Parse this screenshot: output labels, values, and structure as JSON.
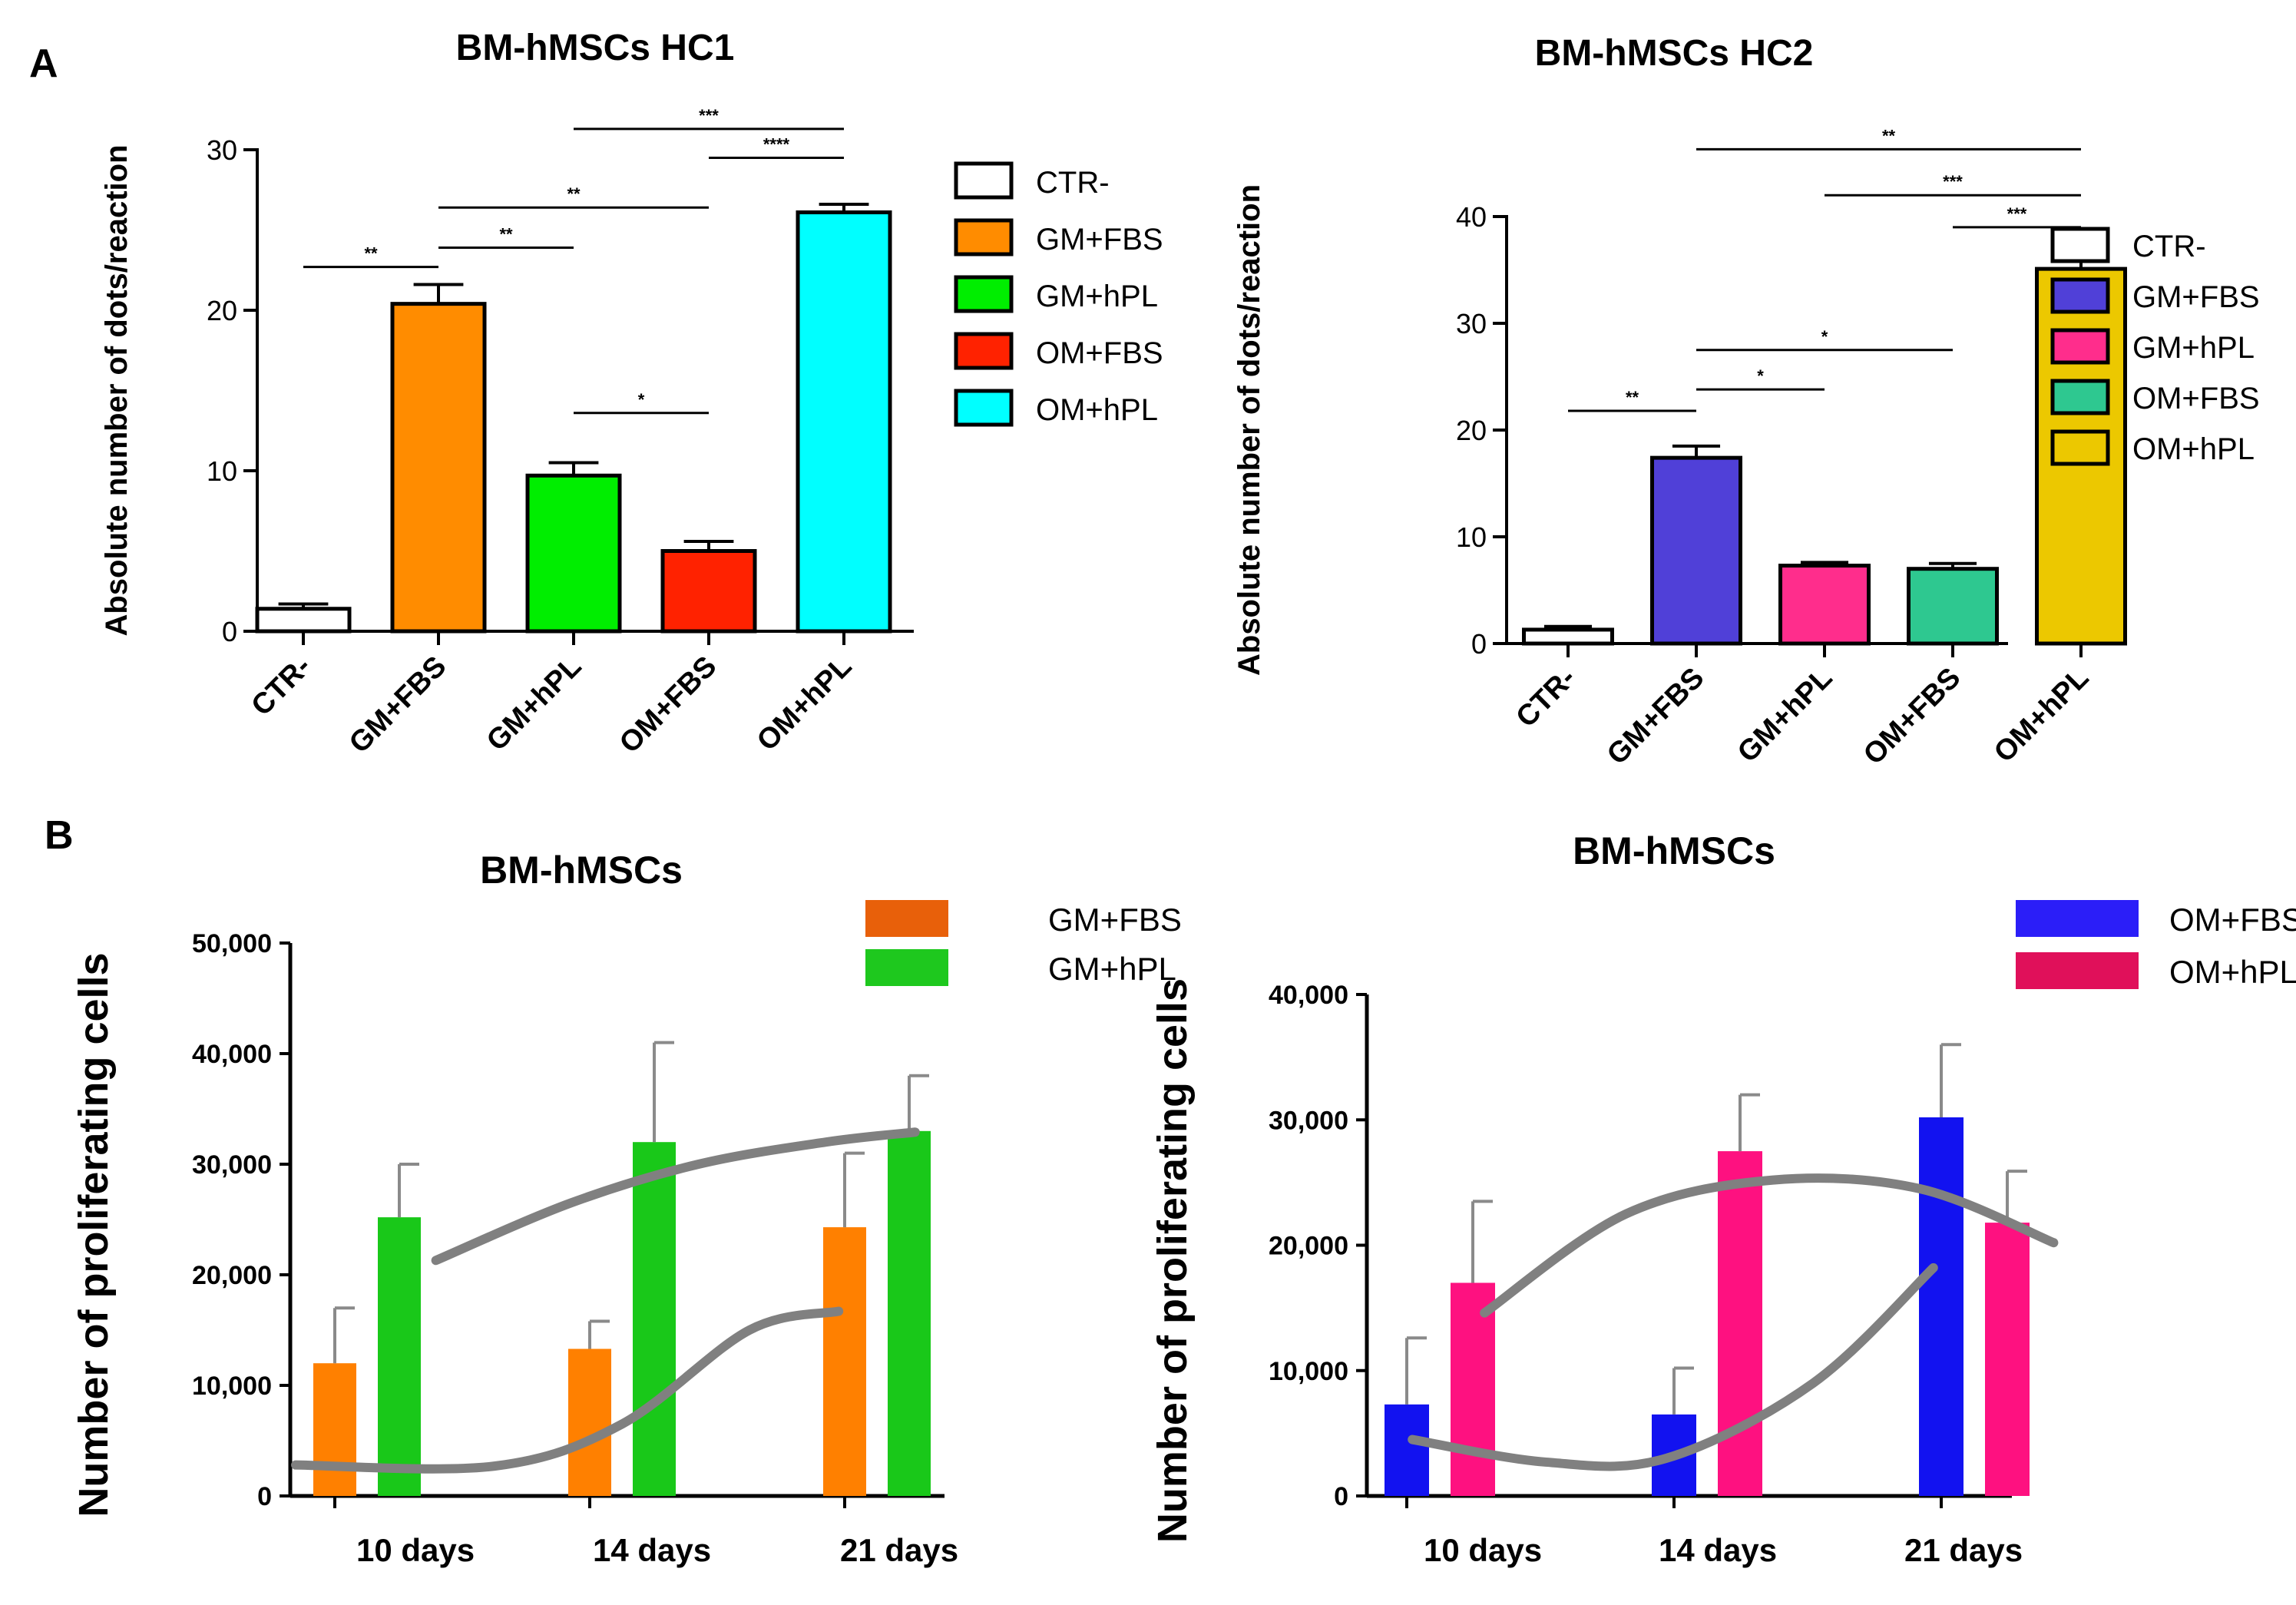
{
  "panel_labels": {
    "a": "A",
    "b": "B"
  },
  "chart_data": [
    {
      "id": "a1",
      "type": "bar",
      "title": "BM-hMSCs HC1",
      "ylabel": "Absolute number of dots/reaction",
      "xlabel": "",
      "ylim": [
        0,
        30
      ],
      "yticks": [
        "0",
        "10",
        "20",
        "30"
      ],
      "yticks_values": [
        0,
        10,
        20,
        30
      ],
      "categories": [
        "CTR-",
        "GM+FBS",
        "GM+hPL",
        "OM+FBS",
        "OM+hPL"
      ],
      "values": [
        1.4,
        20.4,
        9.7,
        5.0,
        26.1
      ],
      "errors": [
        0.3,
        1.2,
        0.8,
        0.6,
        0.5
      ],
      "colors": [
        "#ffffff",
        "#ff8c00",
        "#00ee00",
        "#ff2200",
        "#00ffff"
      ],
      "legend": [
        "CTR-",
        "GM+FBS",
        "GM+hPL",
        "OM+FBS",
        "OM+hPL"
      ],
      "significance": [
        {
          "from": 0,
          "to": 1,
          "y": 22.7,
          "label": "**"
        },
        {
          "from": 1,
          "to": 2,
          "y": 23.9,
          "label": "**"
        },
        {
          "from": 1,
          "to": 3,
          "y": 26.4,
          "label": "**"
        },
        {
          "from": 2,
          "to": 3,
          "y": 13.6,
          "label": "*"
        },
        {
          "from": 3,
          "to": 4,
          "y": 29.5,
          "label": "****"
        },
        {
          "from": 2,
          "to": 4,
          "y": 31.3,
          "label": "***"
        }
      ]
    },
    {
      "id": "a2",
      "type": "bar",
      "title": "BM-hMSCs HC2",
      "ylabel": "Absolute number of dots/reaction",
      "xlabel": "",
      "ylim": [
        0,
        40
      ],
      "yticks": [
        "0",
        "10",
        "20",
        "30",
        "40"
      ],
      "yticks_values": [
        0,
        10,
        20,
        30,
        40
      ],
      "categories": [
        "CTR-",
        "GM+FBS",
        "GM+hPL",
        "OM+FBS",
        "OM+hPL"
      ],
      "values": [
        1.3,
        17.4,
        7.3,
        7.0,
        35.1
      ],
      "errors": [
        0.3,
        1.1,
        0.3,
        0.5,
        2.7
      ],
      "colors": [
        "#ffffff",
        "#5040d8",
        "#ff2d8c",
        "#2ec890",
        "#ecc800"
      ],
      "legend": [
        "CTR-",
        "GM+FBS",
        "GM+hPL",
        "OM+FBS",
        "OM+hPL"
      ],
      "significance": [
        {
          "from": 0,
          "to": 1,
          "y": 21.8,
          "label": "**"
        },
        {
          "from": 1,
          "to": 2,
          "y": 23.8,
          "label": "*"
        },
        {
          "from": 1,
          "to": 3,
          "y": 27.5,
          "label": "*"
        },
        {
          "from": 3,
          "to": 4,
          "y": 39.0,
          "label": "***"
        },
        {
          "from": 2,
          "to": 4,
          "y": 42.0,
          "label": "***"
        },
        {
          "from": 1,
          "to": 4,
          "y": 46.3,
          "label": "**"
        }
      ]
    },
    {
      "id": "b1",
      "type": "bar",
      "title": "BM-hMSCs",
      "ylabel": "Number of proliferating cells",
      "xlabel": "",
      "ylim": [
        0,
        50000
      ],
      "yticks": [
        "0",
        "10,000",
        "20,000",
        "30,000",
        "40,000",
        "50,000"
      ],
      "yticks_values": [
        0,
        10000,
        20000,
        30000,
        40000,
        50000
      ],
      "categories": [
        "10 days",
        "14 days",
        "21 days"
      ],
      "series": [
        {
          "name": "GM+FBS",
          "color": "#ff8000",
          "values": [
            12000,
            13300,
            24300
          ],
          "errors": [
            5000,
            2500,
            6700
          ]
        },
        {
          "name": "GM+hPL",
          "color": "#19c819",
          "values": [
            25200,
            32000,
            33000
          ],
          "errors": [
            4800,
            9000,
            5000
          ]
        }
      ],
      "legend_colors": [
        "#e8600a",
        "#1ec81e"
      ],
      "trend_lines": [
        {
          "name": "GM+FBS trend",
          "points": [
            [
              -0.28,
              2800
            ],
            [
              0.5,
              2700
            ],
            [
              1.0,
              6500
            ],
            [
              1.5,
              15000
            ],
            [
              1.85,
              16700
            ]
          ]
        },
        {
          "name": "GM+hPL trend",
          "points": [
            [
              0.27,
              21300
            ],
            [
              0.8,
              26500
            ],
            [
              1.3,
              30000
            ],
            [
              1.8,
              32000
            ],
            [
              2.15,
              32900
            ]
          ]
        }
      ]
    },
    {
      "id": "b2",
      "type": "bar",
      "title": "BM-hMSCs",
      "ylabel": "Number of proliferating cells",
      "xlabel": "",
      "ylim": [
        0,
        40000
      ],
      "yticks": [
        "0",
        "10,000",
        "20,000",
        "30,000",
        "40,000"
      ],
      "yticks_values": [
        0,
        10000,
        20000,
        30000,
        40000
      ],
      "categories": [
        "10 days",
        "14 days",
        "21 days"
      ],
      "series": [
        {
          "name": "OM+FBS",
          "color": "#1212f0",
          "values": [
            7300,
            6500,
            30200
          ],
          "errors": [
            5300,
            3700,
            5800
          ]
        },
        {
          "name": "OM+hPL",
          "color": "#fe1180",
          "values": [
            17000,
            27500,
            21800
          ],
          "errors": [
            6500,
            4500,
            4100
          ]
        }
      ],
      "legend_colors": [
        "#2b1ef8",
        "#e0105a"
      ],
      "trend_lines": [
        {
          "name": "OM+FBS trend",
          "points": [
            [
              -0.1,
              4500
            ],
            [
              0.4,
              2700
            ],
            [
              0.85,
              3000
            ],
            [
              1.4,
              9000
            ],
            [
              1.85,
              18200
            ]
          ]
        },
        {
          "name": "OM+hPL trend",
          "points": [
            [
              0.17,
              14600
            ],
            [
              0.7,
              22500
            ],
            [
              1.25,
              25200
            ],
            [
              1.8,
              24500
            ],
            [
              2.3,
              20200
            ]
          ]
        }
      ]
    }
  ]
}
